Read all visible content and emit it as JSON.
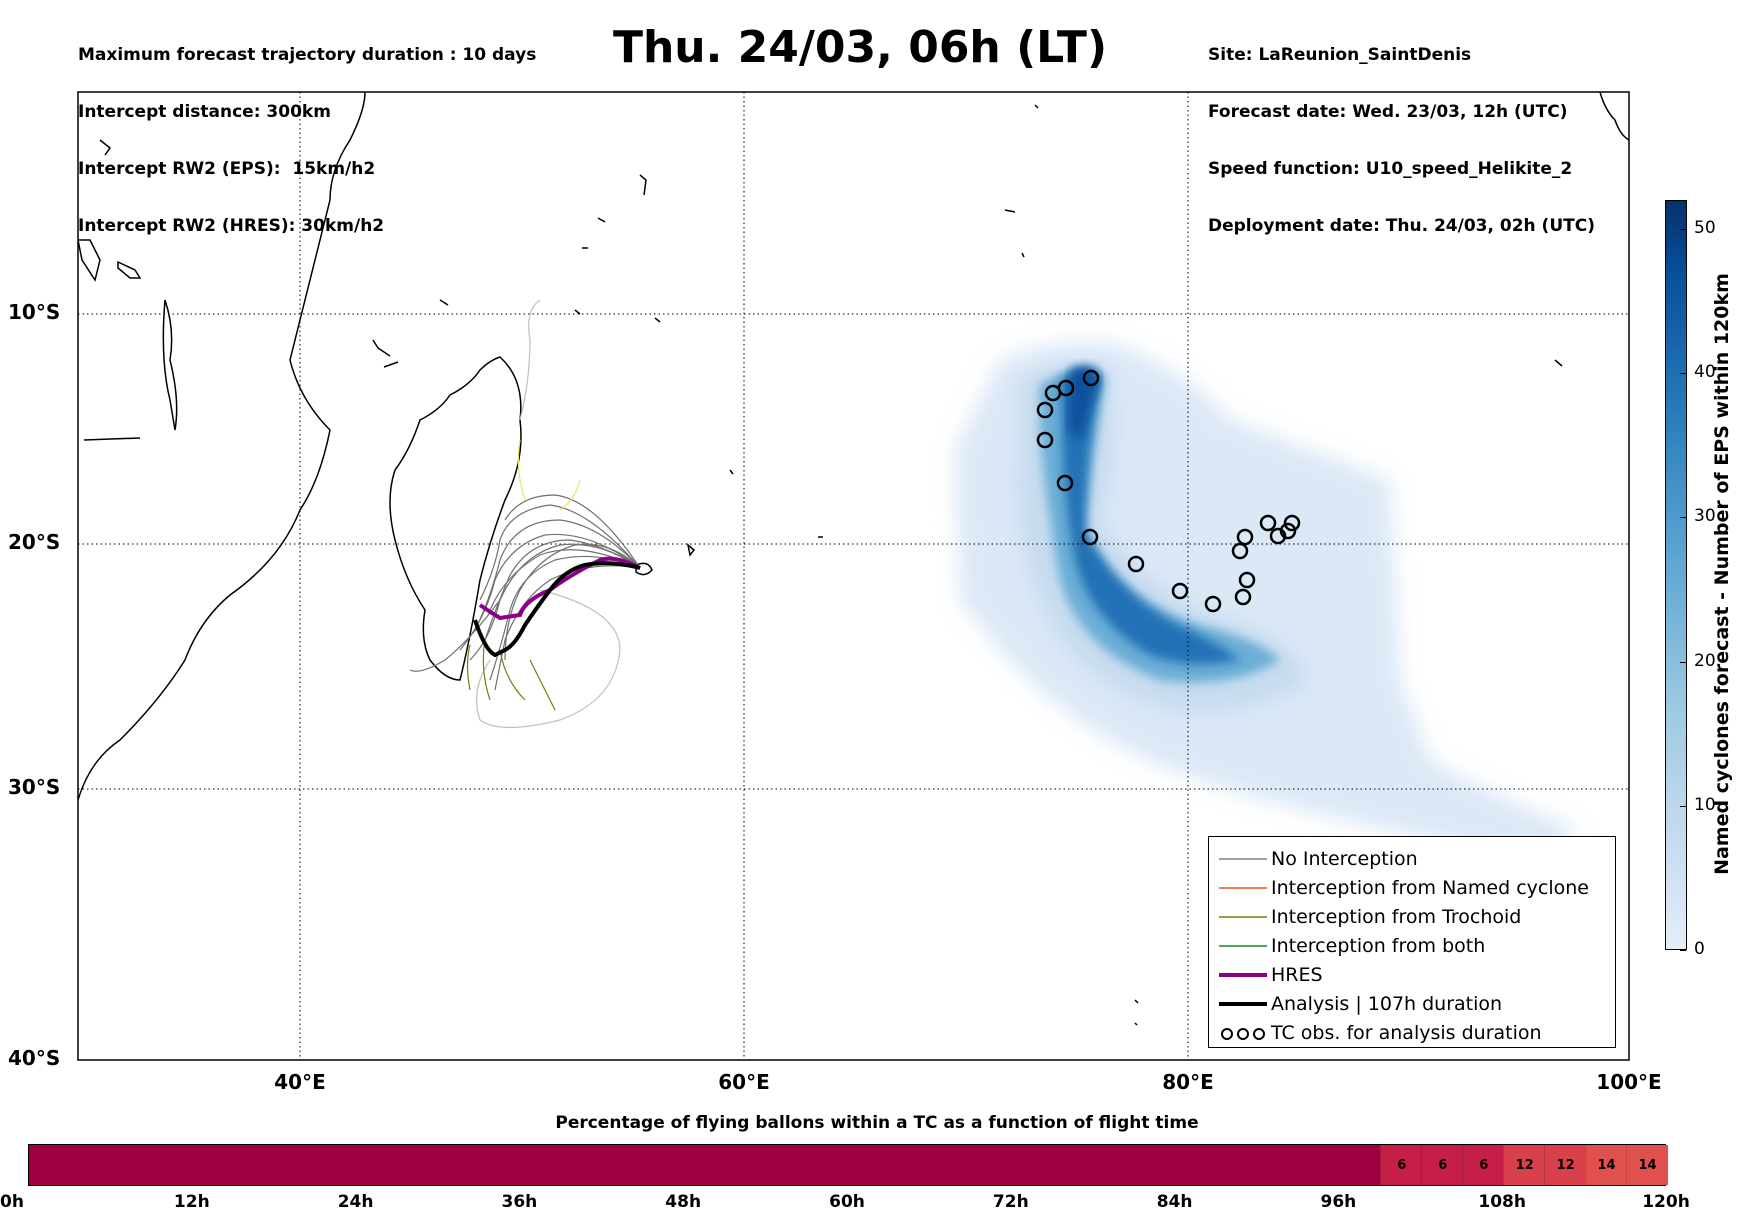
{
  "header_left": {
    "line1": "Maximum forecast trajectory duration : 10 days",
    "line2": "Intercept distance: 300km",
    "line3": "Intercept RW2 (EPS):  15km/h2",
    "line4": "Intercept RW2 (HRES): 30km/h2"
  },
  "title": "Thu. 24/03, 06h (LT)",
  "header_right": {
    "line1": "Site: LaReunion_SaintDenis",
    "line2": "Forecast date: Wed. 23/03, 12h (UTC)",
    "line3": "Speed function: U10_speed_Helikite_2",
    "line4": "Deployment date: Thu. 24/03, 02h (UTC)"
  },
  "map": {
    "lat_ticks": [
      "10°S",
      "20°S",
      "30°S",
      "40°S"
    ],
    "lon_ticks": [
      "40°E",
      "60°E",
      "80°E",
      "100°E"
    ],
    "lon_range": [
      30,
      100
    ],
    "lat_range": [
      -3,
      -40
    ],
    "gridlines": "dotted",
    "legend_placement": "lower-right"
  },
  "legend": {
    "items": [
      {
        "label": "No Interception",
        "color": "#808080",
        "style": "thin"
      },
      {
        "label": "Interception from Named cyclone",
        "color": "#e8561c",
        "style": "thin"
      },
      {
        "label": "Interception from Trochoid",
        "color": "#7f7a10",
        "style": "thin"
      },
      {
        "label": "Interception from both",
        "color": "#1a8a1a",
        "style": "thin"
      },
      {
        "label": "HRES",
        "color": "#8b008b",
        "style": "thick"
      },
      {
        "label": "Analysis | 107h duration",
        "color": "#000000",
        "style": "thick"
      },
      {
        "label": "TC obs. for analysis duration",
        "color": "#000000",
        "style": "symbol"
      }
    ]
  },
  "colorbar": {
    "label": "Named cyclones forecast - Number of EPS within 120km",
    "ticks": [
      "0",
      "10",
      "20",
      "30",
      "40",
      "50"
    ],
    "range": [
      0,
      52
    ]
  },
  "timeline": {
    "title": "Percentage of flying ballons within a TC as a function of flight time",
    "ticks": [
      "0h",
      "12h",
      "24h",
      "36h",
      "48h",
      "60h",
      "72h",
      "84h",
      "96h",
      "108h",
      "120h"
    ],
    "cells": [
      {
        "start_h": 99,
        "end_h": 102,
        "value": "6"
      },
      {
        "start_h": 102,
        "end_h": 105,
        "value": "6"
      },
      {
        "start_h": 105,
        "end_h": 108,
        "value": "6"
      },
      {
        "start_h": 108,
        "end_h": 111,
        "value": "12"
      },
      {
        "start_h": 111,
        "end_h": 114,
        "value": "12"
      },
      {
        "start_h": 114,
        "end_h": 117,
        "value": "14"
      },
      {
        "start_h": 117,
        "end_h": 120,
        "value": "14"
      }
    ],
    "cell_colors": {
      "6": "#c51e48",
      "12": "#d8404b",
      "14": "#e0504c"
    },
    "base_color": "#9e0142"
  }
}
